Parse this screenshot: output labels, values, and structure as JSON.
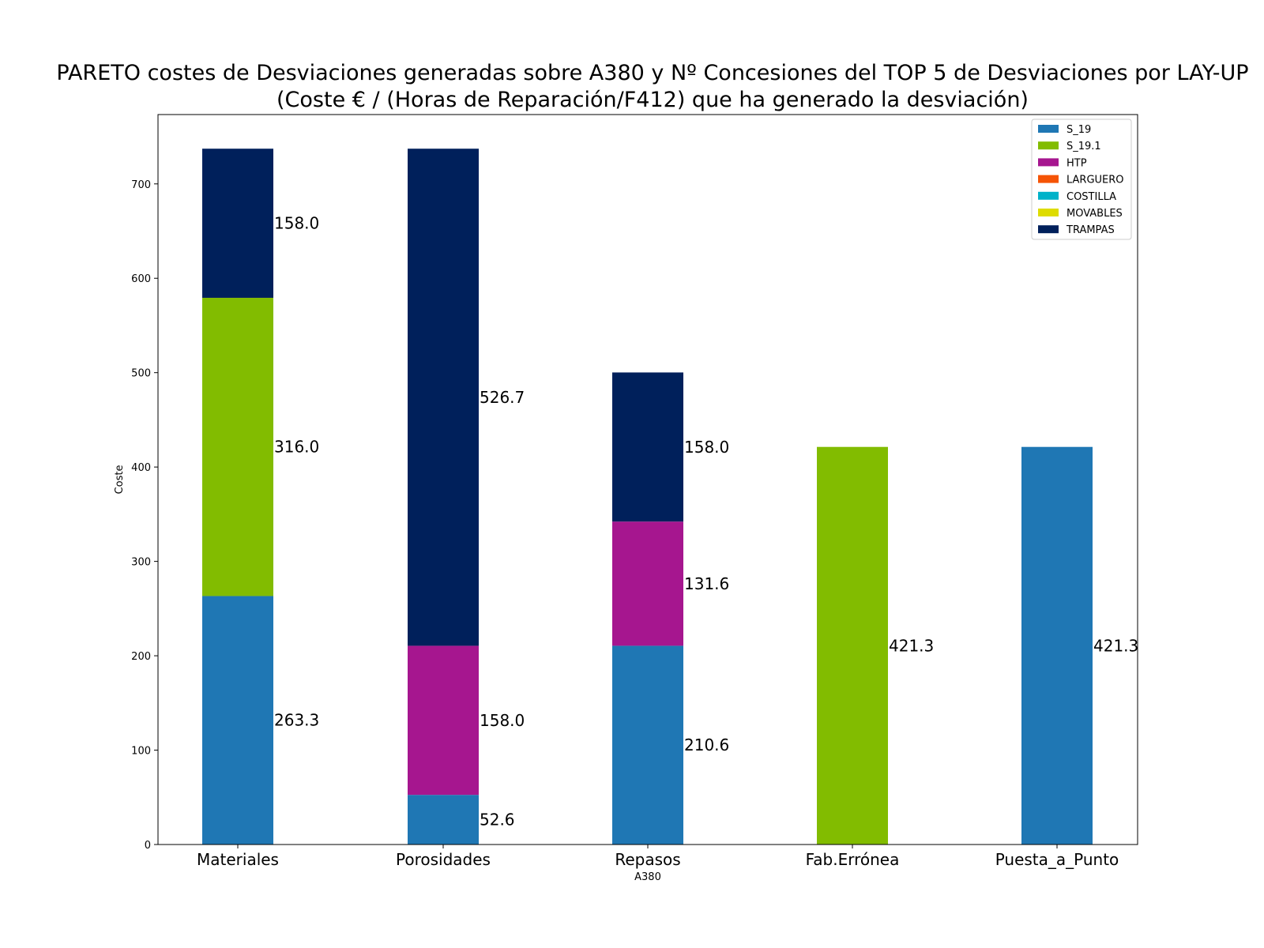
{
  "chart_data": {
    "type": "bar",
    "stacked": true,
    "title": "PARETO costes de Desviaciones  generadas sobre A380 y Nº Concesiones del TOP 5 de Desviaciones por LAY-UP",
    "subtitle": "(Coste € / (Horas de Reparación/F412) que ha generado la desviación)",
    "xlabel": "A380",
    "ylabel": "Coste",
    "ylim": [
      0,
      760
    ],
    "yticks": [
      0,
      100,
      200,
      300,
      400,
      500,
      600,
      700
    ],
    "grid": false,
    "legend_position": "top-right",
    "categories": [
      "Materiales",
      "Porosidades",
      "Repasos",
      "Fab.Errónea",
      "Puesta_a_Punto"
    ],
    "series": [
      {
        "name": "S_19",
        "color": "#1f77b4",
        "values": [
          263.3,
          52.6,
          210.6,
          0,
          421.3
        ]
      },
      {
        "name": "S_19.1",
        "color": "#82bc00",
        "values": [
          316.0,
          0,
          0,
          421.3,
          0
        ]
      },
      {
        "name": "HTP",
        "color": "#a6168f",
        "values": [
          0,
          158.0,
          131.6,
          0,
          0
        ]
      },
      {
        "name": "LARGUERO",
        "color": "#f55406",
        "values": [
          0,
          0,
          0,
          0,
          0
        ]
      },
      {
        "name": "COSTILLA",
        "color": "#00b2c9",
        "values": [
          0,
          0,
          0,
          0,
          0
        ]
      },
      {
        "name": "MOVABLES",
        "color": "#dedc00",
        "values": [
          0,
          0,
          0,
          0,
          0
        ]
      },
      {
        "name": "TRAMPAS",
        "color": "#00205b",
        "values": [
          158.0,
          526.7,
          158.0,
          0,
          0
        ]
      }
    ]
  }
}
